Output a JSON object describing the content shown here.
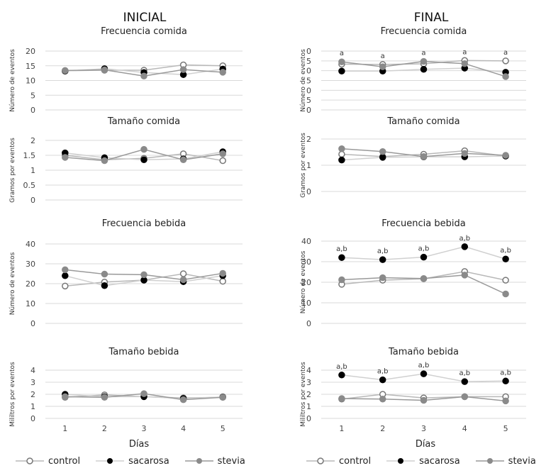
{
  "series_styles": {
    "control": {
      "marker_fill": "#ffffff",
      "marker_stroke": "#777777",
      "line": "#b8b8b8"
    },
    "sacarosa": {
      "marker_fill": "#000000",
      "marker_stroke": "#000000",
      "line": "#d0d0d0"
    },
    "stevia": {
      "marker_fill": "#8a8a8a",
      "marker_stroke": "#8a8a8a",
      "line": "#999999"
    }
  },
  "legend_left": {
    "items": [
      {
        "key": "control",
        "label": "control"
      },
      {
        "key": "sacarosa",
        "label": "sacarosa"
      },
      {
        "key": "stevia",
        "label": "stevia"
      }
    ]
  },
  "legend_right": {
    "items": [
      {
        "key": "control",
        "label": "control"
      },
      {
        "key": "sacarosa",
        "label": "sacarosa"
      },
      {
        "key": "stevia",
        "label": "stevia"
      }
    ]
  },
  "chart_data": [
    {
      "type": "line",
      "column_title": "INICIAL",
      "title": "Frecuencia comida",
      "ylabel": "Número de eventos",
      "yticks": [
        "20",
        "15",
        "10",
        "5",
        "0"
      ],
      "ylim": [
        0,
        20
      ],
      "x": [
        1,
        2,
        3,
        4,
        5
      ],
      "xlabel": "",
      "xticks": [],
      "series": [
        {
          "name": "control",
          "values": [
            13.3,
            13.5,
            13.5,
            15.3,
            15.0
          ]
        },
        {
          "name": "sacarosa",
          "values": [
            13.2,
            14.0,
            12.7,
            12.0,
            13.9
          ]
        },
        {
          "name": "stevia",
          "values": [
            13.4,
            13.6,
            11.5,
            13.7,
            12.8
          ]
        }
      ],
      "annotations": []
    },
    {
      "type": "line",
      "column_title": "FINAL",
      "title": "Frecuencia comida",
      "ylabel": "Número de eventos",
      "yticks": [
        "0",
        "5",
        "0",
        "5",
        "0",
        "5",
        "0"
      ],
      "ylim": [
        0,
        30
      ],
      "x": [
        1,
        2,
        3,
        4,
        5
      ],
      "xlabel": "",
      "xticks": [],
      "series": [
        {
          "name": "control",
          "values": [
            23.3,
            23.2,
            23.5,
            25.2,
            25.0
          ]
        },
        {
          "name": "sacarosa",
          "values": [
            19.8,
            19.8,
            20.7,
            21.3,
            19.2
          ]
        },
        {
          "name": "stevia",
          "values": [
            24.5,
            22.0,
            24.7,
            23.6,
            17.0
          ]
        }
      ],
      "annotations": [
        "a",
        "a",
        "a",
        "a",
        "a"
      ]
    },
    {
      "type": "line",
      "column_title": "",
      "title": "Tamaño comida",
      "ylabel": "Gramos por eventos",
      "yticks": [
        "2",
        "1.5",
        "1",
        "0.5",
        "0"
      ],
      "ylim": [
        0,
        2
      ],
      "x": [
        1,
        2,
        3,
        4,
        5
      ],
      "xlabel": "",
      "xticks": [],
      "series": [
        {
          "name": "control",
          "values": [
            1.5,
            1.35,
            1.4,
            1.55,
            1.32
          ]
        },
        {
          "name": "sacarosa",
          "values": [
            1.58,
            1.42,
            1.35,
            1.38,
            1.62
          ]
        },
        {
          "name": "stevia",
          "values": [
            1.43,
            1.32,
            1.7,
            1.35,
            1.55
          ]
        }
      ],
      "annotations": []
    },
    {
      "type": "line",
      "column_title": "",
      "title": "Tamaño comida",
      "ylabel": "Gramos por eventos",
      "yticks": [
        "2",
        "1",
        "0"
      ],
      "ylim": [
        0,
        2
      ],
      "x": [
        1,
        2,
        3,
        4,
        5
      ],
      "xlabel": "",
      "xticks": [],
      "series": [
        {
          "name": "control",
          "values": [
            1.42,
            1.33,
            1.42,
            1.55,
            1.35
          ]
        },
        {
          "name": "sacarosa",
          "values": [
            1.2,
            1.3,
            1.32,
            1.32,
            1.35
          ]
        },
        {
          "name": "stevia",
          "values": [
            1.63,
            1.52,
            1.33,
            1.45,
            1.38
          ]
        }
      ],
      "annotations": []
    },
    {
      "type": "line",
      "column_title": "",
      "title": "Frecuencia bebida",
      "ylabel": "Número de eventos",
      "yticks": [
        "40",
        "30",
        "20",
        "10",
        "0"
      ],
      "ylim": [
        0,
        40
      ],
      "x": [
        1,
        2,
        3,
        4,
        5
      ],
      "xlabel": "",
      "xticks": [],
      "series": [
        {
          "name": "control",
          "values": [
            18.8,
            20.8,
            21.8,
            25.0,
            21.2
          ]
        },
        {
          "name": "sacarosa",
          "values": [
            24.0,
            19.0,
            21.8,
            21.0,
            24.0
          ]
        },
        {
          "name": "stevia",
          "values": [
            27.0,
            24.8,
            24.5,
            22.0,
            25.2
          ]
        }
      ],
      "annotations": []
    },
    {
      "type": "line",
      "column_title": "",
      "title": "Frecuencia bebida",
      "ylabel": "Número de eventos",
      "yticks": [
        "40",
        "30",
        "20",
        "10",
        "0"
      ],
      "ylim": [
        0,
        40
      ],
      "x": [
        1,
        2,
        3,
        4,
        5
      ],
      "xlabel": "",
      "xticks": [],
      "series": [
        {
          "name": "control",
          "values": [
            19.0,
            21.0,
            21.7,
            25.2,
            21.0
          ]
        },
        {
          "name": "sacarosa",
          "values": [
            32.0,
            31.0,
            32.2,
            37.3,
            31.3
          ]
        },
        {
          "name": "stevia",
          "values": [
            21.2,
            22.2,
            21.8,
            23.5,
            14.3
          ]
        }
      ],
      "annotations": [
        "a,b",
        "a,b",
        "a,b",
        "a,b",
        "a,b"
      ]
    },
    {
      "type": "line",
      "column_title": "",
      "title": "Tamaño bebida",
      "ylabel": "Mililtros por eventos",
      "yticks": [
        "4",
        "3",
        "2",
        "1",
        "0"
      ],
      "ylim": [
        0,
        4
      ],
      "x": [
        1,
        2,
        3,
        4,
        5
      ],
      "xlabel": "Días",
      "xticks": [
        "1",
        "2",
        "3",
        "4",
        "5"
      ],
      "series": [
        {
          "name": "control",
          "values": [
            1.75,
            1.95,
            1.8,
            1.7,
            1.75
          ]
        },
        {
          "name": "sacarosa",
          "values": [
            2.0,
            1.8,
            1.8,
            1.65,
            1.78
          ]
        },
        {
          "name": "stevia",
          "values": [
            1.8,
            1.75,
            2.05,
            1.55,
            1.75
          ]
        }
      ],
      "annotations": []
    },
    {
      "type": "line",
      "column_title": "",
      "title": "Tamaño bebida",
      "ylabel": "Mililtros por eventos",
      "yticks": [
        "4",
        "3",
        "2",
        "1",
        "0"
      ],
      "ylim": [
        0,
        4
      ],
      "x": [
        1,
        2,
        3,
        4,
        5
      ],
      "xlabel": "Días",
      "xticks": [
        "1",
        "2",
        "3",
        "4",
        "5"
      ],
      "series": [
        {
          "name": "control",
          "values": [
            1.6,
            2.0,
            1.7,
            1.8,
            1.8
          ]
        },
        {
          "name": "sacarosa",
          "values": [
            3.6,
            3.2,
            3.7,
            3.05,
            3.1
          ]
        },
        {
          "name": "stevia",
          "values": [
            1.65,
            1.6,
            1.5,
            1.8,
            1.45
          ]
        }
      ],
      "annotations": [
        "a,b",
        "a,b",
        "a,b",
        "a,b",
        "a,b"
      ]
    }
  ]
}
